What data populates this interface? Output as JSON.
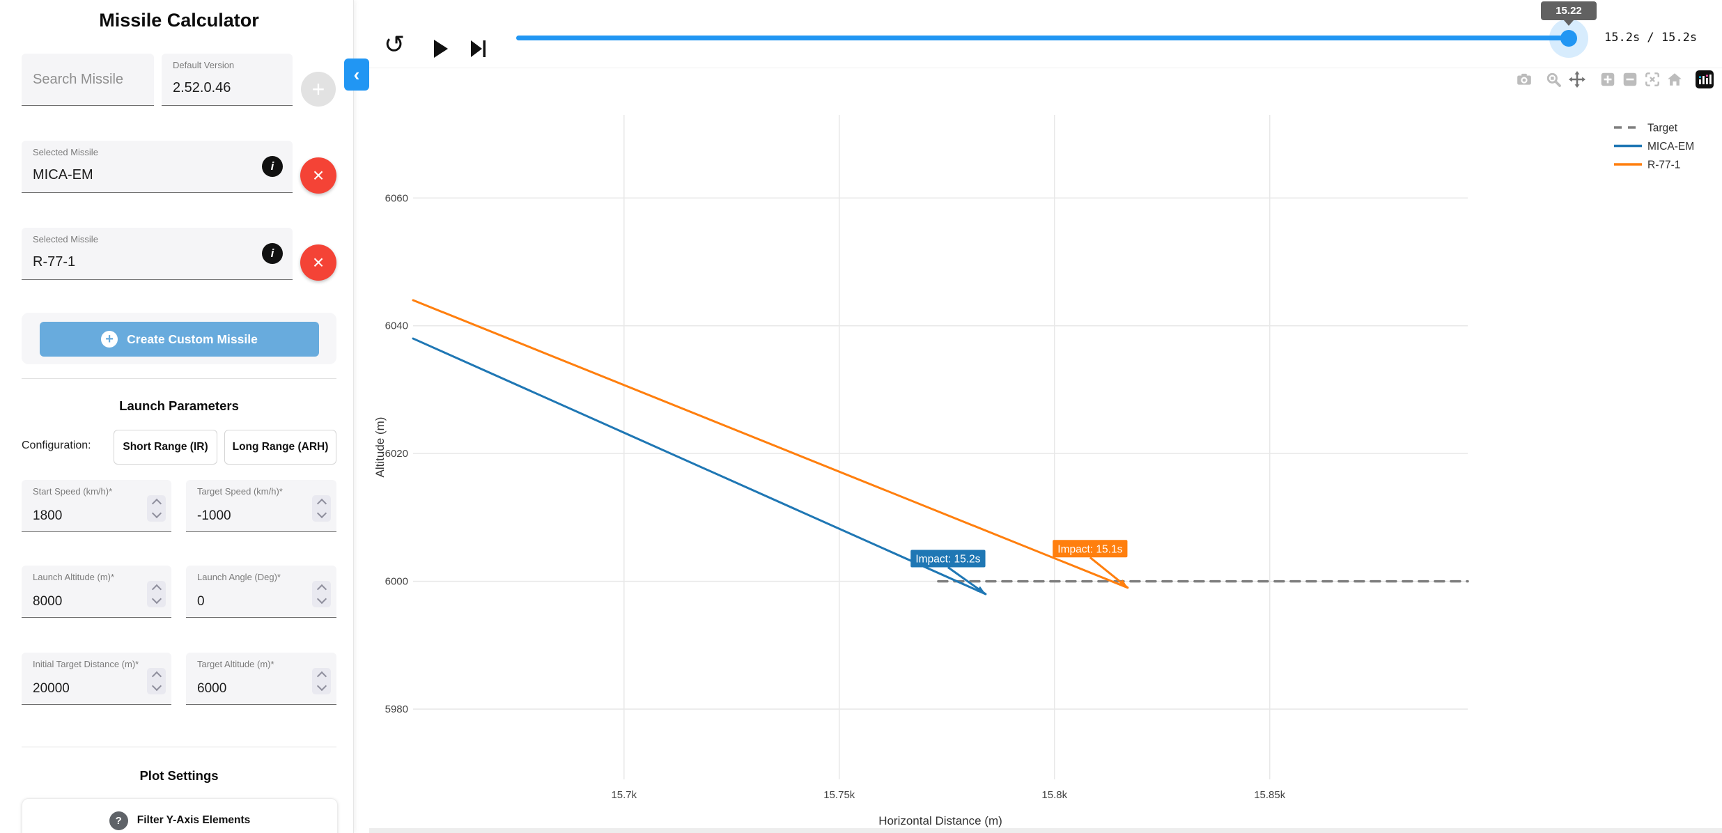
{
  "sidebar": {
    "title": "Missile Calculator",
    "search": {
      "placeholder": "Search Missile"
    },
    "version": {
      "label": "Default Version",
      "value": "2.52.0.46"
    },
    "selected_missiles": [
      {
        "label": "Selected Missile",
        "value": "MICA-EM"
      },
      {
        "label": "Selected Missile",
        "value": "R-77-1"
      }
    ],
    "create_custom_label": "Create Custom Missile",
    "launch_parameters": {
      "heading": "Launch Parameters",
      "configuration_label": "Configuration:",
      "config_options": [
        "Short Range (IR)",
        "Long Range (ARH)"
      ],
      "fields": [
        {
          "label": "Start Speed (km/h)*",
          "value": "1800"
        },
        {
          "label": "Target Speed (km/h)*",
          "value": "-1000"
        },
        {
          "label": "Launch Altitude (m)*",
          "value": "8000"
        },
        {
          "label": "Launch Angle (Deg)*",
          "value": "0"
        },
        {
          "label": "Initial Target Distance (m)*",
          "value": "20000"
        },
        {
          "label": "Target Altitude (m)*",
          "value": "6000"
        }
      ]
    },
    "plot_settings": {
      "heading": "Plot Settings",
      "filter_label": "Filter Y-Axis Elements"
    }
  },
  "playback": {
    "slider_tooltip": "15.22",
    "slider_value": 15.22,
    "slider_max": 15.22,
    "time_display": "15.2s / 15.2s"
  },
  "modebar_icons": [
    "camera",
    "zoom",
    "pan",
    "zoom-in",
    "zoom-out",
    "autoscale",
    "reset-home",
    "plotly-logo"
  ],
  "colors": {
    "accent_blue": "#2196f3",
    "create_button_blue": "#68abdd",
    "danger_red": "#f44336",
    "tooltip_grey": "#616161"
  },
  "chart_data": {
    "type": "line",
    "title": "",
    "xlabel": "Horizontal Distance (m)",
    "ylabel": "Altitude (m)",
    "xlim": [
      15651,
      15896
    ],
    "ylim": [
      5969,
      6073
    ],
    "grid": true,
    "legend_position": "outside-top-right",
    "xticks": [
      {
        "value": 15700,
        "label": "15.7k"
      },
      {
        "value": 15750,
        "label": "15.75k"
      },
      {
        "value": 15800,
        "label": "15.8k"
      },
      {
        "value": 15850,
        "label": "15.85k"
      }
    ],
    "yticks": [
      {
        "value": 5980,
        "label": "5980"
      },
      {
        "value": 6000,
        "label": "6000"
      },
      {
        "value": 6020,
        "label": "6020"
      },
      {
        "value": 6040,
        "label": "6040"
      },
      {
        "value": 6060,
        "label": "6060"
      }
    ],
    "series": [
      {
        "name": "Target",
        "color": "#7f7f7f",
        "dash": "dash",
        "width": 3.5,
        "points": [
          [
            15773,
            6000
          ],
          [
            15896,
            6000
          ]
        ]
      },
      {
        "name": "MICA-EM",
        "color": "#1f77b4",
        "dash": "solid",
        "width": 3,
        "points": [
          [
            15651,
            6038
          ],
          [
            15784,
            5998
          ]
        ]
      },
      {
        "name": "R-77-1",
        "color": "#ff7f0e",
        "dash": "solid",
        "width": 3,
        "points": [
          [
            15651,
            6044
          ],
          [
            15817,
            5999
          ]
        ]
      }
    ],
    "annotations": [
      {
        "text": "Impact: 15.2s",
        "color": "#1f77b4",
        "x": 15784,
        "y": 5998,
        "ax": -54,
        "ay": -51
      },
      {
        "text": "Impact: 15.1s",
        "color": "#ff7f0e",
        "x": 15817,
        "y": 5999,
        "ax": -54,
        "ay": -56
      }
    ]
  }
}
